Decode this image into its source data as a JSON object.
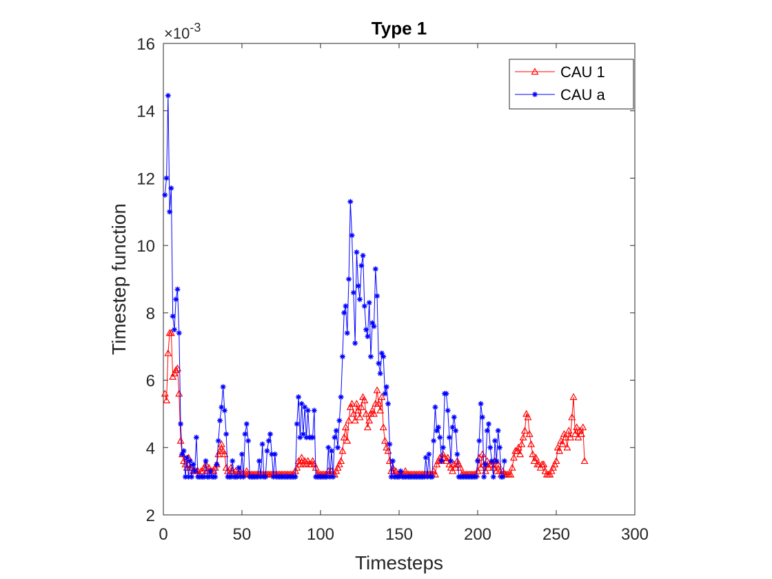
{
  "chart_data": {
    "type": "line",
    "title": "Type 1",
    "xlabel": "Timesteps",
    "ylabel": "Timestep function",
    "y_multiplier": {
      "base": "×10",
      "exponent": "-3"
    },
    "xlim": [
      0,
      300
    ],
    "xticks": [
      0,
      50,
      100,
      150,
      200,
      250,
      300
    ],
    "ylim": [
      2,
      16
    ],
    "yticks": [
      2,
      4,
      6,
      8,
      10,
      12,
      14,
      16
    ],
    "grid": false,
    "legend": "top-right",
    "series": [
      {
        "name": "CAU 1",
        "color": "#ff0000",
        "marker": "triangle",
        "x": [
          1,
          2,
          3,
          4,
          5,
          6,
          7,
          8,
          9,
          10,
          11,
          12,
          13,
          14,
          15,
          16,
          17,
          18,
          19,
          20,
          21,
          22,
          23,
          24,
          25,
          26,
          27,
          28,
          29,
          30,
          31,
          32,
          33,
          34,
          35,
          36,
          37,
          38,
          39,
          40,
          41,
          42,
          43,
          44,
          45,
          46,
          47,
          48,
          49,
          50,
          51,
          52,
          53,
          54,
          55,
          56,
          57,
          58,
          59,
          60,
          61,
          62,
          63,
          64,
          65,
          66,
          67,
          68,
          69,
          70,
          71,
          72,
          73,
          74,
          75,
          76,
          77,
          78,
          79,
          80,
          81,
          82,
          83,
          84,
          85,
          86,
          87,
          88,
          89,
          90,
          91,
          92,
          93,
          94,
          95,
          96,
          97,
          98,
          99,
          100,
          101,
          102,
          103,
          104,
          105,
          106,
          107,
          108,
          109,
          110,
          111,
          112,
          113,
          114,
          115,
          116,
          117,
          118,
          119,
          120,
          121,
          122,
          123,
          124,
          125,
          126,
          127,
          128,
          129,
          130,
          131,
          132,
          133,
          134,
          135,
          136,
          137,
          138,
          139,
          140,
          141,
          142,
          143,
          144,
          145,
          146,
          147,
          148,
          149,
          150,
          151,
          152,
          153,
          154,
          155,
          156,
          157,
          158,
          159,
          160,
          161,
          162,
          163,
          164,
          165,
          166,
          167,
          168,
          169,
          170,
          171,
          172,
          173,
          174,
          175,
          176,
          177,
          178,
          179,
          180,
          181,
          182,
          183,
          184,
          185,
          186,
          187,
          188,
          189,
          190,
          191,
          192,
          193,
          194,
          195,
          196,
          197,
          198,
          199,
          200,
          201,
          202,
          203,
          204,
          205,
          206,
          207,
          208,
          209,
          210,
          211,
          212,
          213,
          214,
          215,
          216,
          217,
          218,
          219,
          220,
          221,
          222,
          223,
          224,
          225,
          226,
          227,
          228,
          229,
          230,
          231,
          232,
          233,
          234,
          235,
          236,
          237,
          238,
          239,
          240,
          241,
          242,
          243,
          244,
          245,
          246,
          247,
          248,
          249,
          250,
          251,
          252,
          253,
          254,
          255,
          256,
          257,
          258,
          259,
          260,
          261,
          262,
          263,
          264,
          265,
          266,
          267,
          268
        ],
        "values": [
          5.6,
          5.4,
          6.8,
          7.4,
          7.4,
          6.1,
          6.2,
          6.3,
          6.35,
          5.6,
          4.2,
          3.8,
          3.6,
          3.5,
          3.4,
          3.7,
          3.4,
          3.4,
          3.3,
          3.3,
          3.3,
          3.3,
          3.2,
          3.3,
          3.3,
          3.4,
          3.5,
          3.3,
          3.4,
          3.3,
          3.3,
          3.3,
          3.4,
          3.5,
          3.8,
          3.9,
          4.1,
          3.9,
          3.8,
          3.4,
          3.3,
          3.2,
          3.4,
          3.3,
          3.2,
          3.3,
          3.2,
          3.2,
          3.3,
          3.2,
          3.2,
          3.2,
          3.3,
          3.2,
          3.2,
          3.2,
          3.2,
          3.2,
          3.2,
          3.2,
          3.2,
          3.2,
          3.2,
          3.2,
          3.2,
          3.2,
          3.2,
          3.2,
          3.2,
          3.2,
          3.2,
          3.2,
          3.2,
          3.2,
          3.2,
          3.2,
          3.2,
          3.2,
          3.2,
          3.2,
          3.2,
          3.2,
          3.2,
          3.3,
          3.4,
          3.6,
          3.5,
          3.7,
          3.5,
          3.6,
          3.5,
          3.6,
          3.5,
          3.5,
          3.6,
          3.5,
          3.4,
          3.2,
          3.2,
          3.2,
          3.2,
          3.2,
          3.2,
          3.2,
          3.3,
          3.2,
          3.3,
          3.2,
          3.2,
          3.3,
          3.4,
          3.5,
          3.6,
          3.9,
          4.3,
          4.6,
          4.2,
          4.8,
          5.2,
          5.3,
          5.0,
          4.8,
          5.3,
          5.1,
          4.9,
          5.2,
          5.5,
          5.4,
          5.0,
          4.6,
          4.8,
          5.0,
          5.1,
          5.0,
          5.3,
          5.7,
          5.3,
          5.1,
          5.5,
          4.6,
          4.2,
          4.0,
          3.9,
          3.6,
          3.3,
          3.4,
          3.2,
          3.3,
          3.2,
          3.2,
          3.2,
          3.2,
          3.2,
          3.3,
          3.2,
          3.2,
          3.2,
          3.2,
          3.2,
          3.2,
          3.2,
          3.2,
          3.2,
          3.2,
          3.2,
          3.2,
          3.2,
          3.2,
          3.2,
          3.2,
          3.2,
          3.3,
          3.2,
          3.5,
          3.6,
          3.7,
          3.6,
          3.8,
          3.7,
          3.6,
          3.7,
          3.5,
          3.4,
          3.3,
          3.5,
          3.4,
          3.6,
          3.5,
          3.4,
          3.2,
          3.2,
          3.2,
          3.2,
          3.2,
          3.2,
          3.2,
          3.2,
          3.2,
          3.2,
          3.3,
          3.7,
          3.4,
          3.8,
          3.5,
          3.3,
          3.6,
          3.4,
          3.5,
          3.5,
          3.4,
          3.6,
          3.3,
          3.5,
          3.3,
          3.2,
          3.3,
          3.2,
          3.2,
          3.2,
          3.2,
          3.2,
          3.4,
          3.7,
          3.9,
          3.9,
          4.0,
          3.8,
          4.1,
          4.3,
          4.5,
          5.0,
          4.9,
          4.4,
          4.1,
          3.8,
          3.6,
          3.7,
          3.5,
          3.5,
          3.4,
          3.5,
          3.5,
          3.3,
          3.2,
          3.2,
          3.2,
          3.3,
          3.4,
          3.5,
          3.6,
          4.0,
          3.9,
          4.2,
          4.1,
          4.4,
          4.3,
          4.0,
          4.5,
          4.3,
          4.9,
          5.5,
          4.4,
          4.6,
          4.3,
          4.5,
          4.4,
          4.6,
          3.6
        ]
      },
      {
        "name": "CAU a",
        "color": "#0000ff",
        "marker": "asterisk",
        "x": [
          1,
          2,
          3,
          4,
          5,
          6,
          7,
          8,
          9,
          10,
          11,
          12,
          13,
          14,
          15,
          16,
          17,
          18,
          19,
          20,
          21,
          22,
          23,
          24,
          25,
          26,
          27,
          28,
          29,
          30,
          31,
          32,
          33,
          34,
          35,
          36,
          37,
          38,
          39,
          40,
          41,
          42,
          43,
          44,
          45,
          46,
          47,
          48,
          49,
          50,
          51,
          52,
          53,
          54,
          55,
          56,
          57,
          58,
          59,
          60,
          61,
          62,
          63,
          64,
          65,
          66,
          67,
          68,
          69,
          70,
          71,
          72,
          73,
          74,
          75,
          76,
          77,
          78,
          79,
          80,
          81,
          82,
          83,
          84,
          85,
          86,
          87,
          88,
          89,
          90,
          91,
          92,
          93,
          94,
          95,
          96,
          97,
          98,
          99,
          100,
          101,
          102,
          103,
          104,
          105,
          106,
          107,
          108,
          109,
          110,
          111,
          112,
          113,
          114,
          115,
          116,
          117,
          118,
          119,
          120,
          121,
          122,
          123,
          124,
          125,
          126,
          127,
          128,
          129,
          130,
          131,
          132,
          133,
          134,
          135,
          136,
          137,
          138,
          139,
          140,
          141,
          142,
          143,
          144,
          145,
          146,
          147,
          148,
          149,
          150,
          151,
          152,
          153,
          154,
          155,
          156,
          157,
          158,
          159,
          160,
          161,
          162,
          163,
          164,
          165,
          166,
          167,
          168,
          169,
          170,
          171,
          172,
          173,
          174,
          175,
          176,
          177,
          178,
          179,
          180,
          181,
          182,
          183,
          184,
          185,
          186,
          187,
          188,
          189,
          190,
          191,
          192,
          193,
          194,
          195,
          196,
          197,
          198,
          199,
          200,
          201,
          202,
          203,
          204,
          205,
          206,
          207,
          208,
          209,
          210,
          211,
          212,
          213,
          214,
          215,
          216,
          217
        ],
        "values": [
          11.5,
          12.0,
          14.45,
          11.0,
          11.7,
          7.9,
          7.5,
          8.4,
          8.7,
          7.4,
          4.7,
          3.8,
          3.9,
          3.13,
          3.7,
          3.13,
          3.6,
          3.13,
          3.5,
          3.3,
          4.3,
          3.13,
          3.13,
          3.13,
          3.13,
          3.13,
          3.6,
          3.13,
          3.13,
          3.3,
          3.13,
          3.13,
          3.13,
          3.5,
          4.2,
          4.8,
          5.2,
          5.8,
          5.1,
          4.4,
          3.13,
          3.13,
          3.13,
          3.6,
          3.13,
          3.13,
          3.13,
          3.4,
          3.13,
          3.8,
          3.13,
          4.4,
          4.7,
          4.2,
          3.13,
          3.13,
          3.13,
          3.13,
          3.13,
          3.13,
          3.6,
          3.13,
          4.1,
          3.13,
          3.13,
          3.9,
          4.2,
          4.4,
          3.8,
          3.13,
          3.8,
          3.13,
          3.13,
          3.13,
          3.13,
          3.13,
          3.13,
          3.13,
          3.13,
          3.13,
          3.13,
          3.13,
          3.13,
          3.13,
          4.7,
          5.5,
          4.3,
          5.3,
          4.4,
          5.2,
          4.3,
          5.1,
          4.3,
          4.3,
          4.3,
          5.1,
          3.13,
          3.13,
          3.13,
          3.13,
          3.13,
          3.13,
          3.13,
          3.13,
          4.0,
          3.13,
          3.9,
          3.13,
          4.3,
          4.5,
          4.0,
          4.8,
          5.5,
          6.7,
          8.0,
          8.2,
          7.4,
          9.0,
          11.3,
          10.3,
          8.6,
          7.1,
          9.8,
          8.8,
          8.4,
          9.4,
          9.7,
          8.2,
          7.5,
          7.3,
          8.3,
          6.7,
          7.7,
          7.6,
          9.3,
          8.5,
          6.5,
          6.2,
          6.8,
          6.7,
          5.6,
          5.8,
          5.3,
          4.1,
          3.13,
          3.6,
          3.13,
          3.13,
          3.13,
          3.13,
          3.3,
          3.13,
          3.13,
          3.13,
          3.13,
          3.13,
          3.13,
          3.13,
          3.13,
          3.13,
          3.13,
          3.13,
          3.13,
          3.13,
          3.13,
          3.13,
          3.7,
          3.13,
          3.8,
          3.13,
          3.13,
          4.2,
          5.2,
          4.5,
          4.6,
          4.3,
          3.6,
          4.0,
          5.6,
          5.6,
          5.1,
          4.3,
          3.6,
          4.6,
          4.9,
          4.5,
          3.8,
          3.13,
          3.13,
          3.13,
          3.13,
          3.13,
          3.13,
          3.13,
          3.13,
          3.13,
          3.13,
          3.13,
          3.13,
          3.6,
          4.2,
          5.3,
          4.9,
          3.13,
          3.5,
          4.5,
          4.7,
          4.0,
          3.6,
          3.13,
          4.2,
          3.6,
          4.5,
          4.0,
          3.13,
          3.13,
          3.6
        ]
      }
    ]
  }
}
